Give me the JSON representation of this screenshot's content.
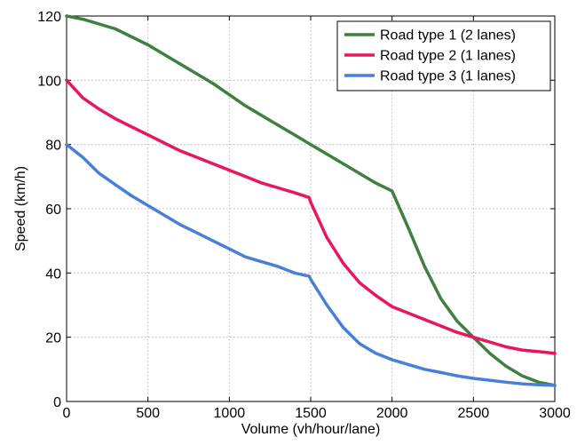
{
  "chart_data": {
    "type": "line",
    "xlabel": "Volume (vh/hour/lane)",
    "ylabel": "Speed (km/h)",
    "xlim": [
      0,
      3000
    ],
    "ylim": [
      0,
      120
    ],
    "xticks": [
      0,
      500,
      1000,
      1500,
      2000,
      2500,
      3000
    ],
    "yticks": [
      0,
      20,
      40,
      60,
      80,
      100,
      120
    ],
    "xtick_labels": [
      "0",
      "500",
      "1000",
      "1500",
      "2000",
      "2500",
      "3000"
    ],
    "ytick_labels": [
      "0",
      "20",
      "40",
      "60",
      "80",
      "100",
      "120"
    ],
    "grid": true,
    "legend_position": "top-right",
    "series": [
      {
        "name": "Road type 1 (2 lanes)",
        "color": "#3f7f3f",
        "points": [
          [
            0,
            120
          ],
          [
            100,
            119
          ],
          [
            200,
            117.5
          ],
          [
            300,
            116
          ],
          [
            400,
            113.5
          ],
          [
            500,
            111
          ],
          [
            600,
            108
          ],
          [
            700,
            105
          ],
          [
            800,
            102
          ],
          [
            900,
            99
          ],
          [
            1000,
            95.5
          ],
          [
            1100,
            92
          ],
          [
            1200,
            89
          ],
          [
            1300,
            86
          ],
          [
            1400,
            83
          ],
          [
            1500,
            80
          ],
          [
            1600,
            77
          ],
          [
            1700,
            74
          ],
          [
            1800,
            71
          ],
          [
            1900,
            68
          ],
          [
            2000,
            65.5
          ],
          [
            2100,
            54
          ],
          [
            2200,
            42
          ],
          [
            2300,
            32
          ],
          [
            2400,
            25
          ],
          [
            2500,
            20
          ],
          [
            2600,
            15
          ],
          [
            2700,
            11
          ],
          [
            2800,
            8
          ],
          [
            2900,
            6
          ],
          [
            3000,
            5
          ]
        ]
      },
      {
        "name": "Road type 2 (1 lanes)",
        "color": "#e8175d",
        "points": [
          [
            0,
            100
          ],
          [
            100,
            94.5
          ],
          [
            200,
            91
          ],
          [
            300,
            88
          ],
          [
            400,
            85.5
          ],
          [
            500,
            83
          ],
          [
            600,
            80.5
          ],
          [
            700,
            78
          ],
          [
            800,
            76
          ],
          [
            900,
            74
          ],
          [
            1000,
            72
          ],
          [
            1100,
            70
          ],
          [
            1200,
            68
          ],
          [
            1300,
            66.5
          ],
          [
            1400,
            65
          ],
          [
            1490,
            63.5
          ],
          [
            1500,
            62
          ],
          [
            1600,
            51
          ],
          [
            1700,
            43
          ],
          [
            1800,
            37
          ],
          [
            1900,
            33
          ],
          [
            2000,
            29.5
          ],
          [
            2100,
            27.5
          ],
          [
            2200,
            25.5
          ],
          [
            2300,
            23.5
          ],
          [
            2400,
            21.5
          ],
          [
            2500,
            20
          ],
          [
            2600,
            18.5
          ],
          [
            2700,
            17
          ],
          [
            2800,
            16
          ],
          [
            2900,
            15.5
          ],
          [
            3000,
            15
          ]
        ]
      },
      {
        "name": "Road type 3 (1 lanes)",
        "color": "#4a7fd6",
        "points": [
          [
            0,
            80
          ],
          [
            100,
            76
          ],
          [
            200,
            71
          ],
          [
            300,
            67.5
          ],
          [
            400,
            64
          ],
          [
            500,
            61
          ],
          [
            600,
            58
          ],
          [
            700,
            55
          ],
          [
            800,
            52.5
          ],
          [
            900,
            50
          ],
          [
            1000,
            47.5
          ],
          [
            1100,
            45
          ],
          [
            1200,
            43.5
          ],
          [
            1300,
            42
          ],
          [
            1400,
            40
          ],
          [
            1490,
            39
          ],
          [
            1500,
            38
          ],
          [
            1600,
            30
          ],
          [
            1700,
            23
          ],
          [
            1800,
            18
          ],
          [
            1900,
            15
          ],
          [
            2000,
            13
          ],
          [
            2100,
            11.5
          ],
          [
            2200,
            10
          ],
          [
            2300,
            9
          ],
          [
            2400,
            8
          ],
          [
            2500,
            7.2
          ],
          [
            2600,
            6.6
          ],
          [
            2700,
            6
          ],
          [
            2800,
            5.5
          ],
          [
            2900,
            5.2
          ],
          [
            3000,
            5
          ]
        ]
      }
    ]
  }
}
